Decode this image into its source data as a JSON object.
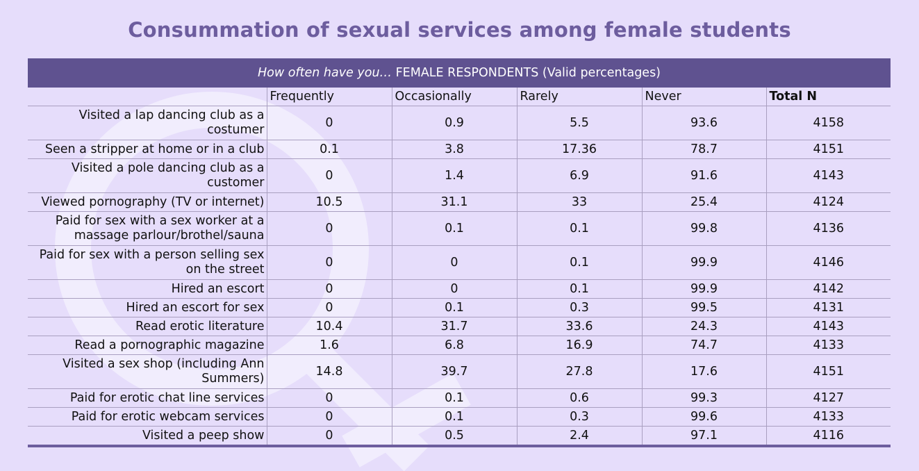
{
  "title": "Consummation of sexual services among female students",
  "table": {
    "banner_italic": "How often have you…",
    "banner_rest": " FEMALE RESPONDENTS (Valid percentages)",
    "columns": [
      "Frequently",
      "Occasionally",
      "Rarely",
      "Never",
      "Total N"
    ],
    "rows": [
      {
        "label": "Visited a lap dancing club as a costumer",
        "values": [
          "0",
          "0.9",
          "5.5",
          "93.6",
          "4158"
        ]
      },
      {
        "label": "Seen a stripper at home or in a club",
        "values": [
          "0.1",
          "3.8",
          "17.36",
          "78.7",
          "4151"
        ]
      },
      {
        "label": "Visited a pole dancing club as a customer",
        "values": [
          "0",
          "1.4",
          "6.9",
          "91.6",
          "4143"
        ]
      },
      {
        "label": "Viewed pornography (TV or internet)",
        "values": [
          "10.5",
          "31.1",
          "33",
          "25.4",
          "4124"
        ]
      },
      {
        "label": "Paid for sex with a sex worker at a massage parlour/brothel/sauna",
        "values": [
          "0",
          "0.1",
          "0.1",
          "99.8",
          "4136"
        ]
      },
      {
        "label": "Paid for sex with a person selling sex on the street",
        "values": [
          "0",
          "0",
          "0.1",
          "99.9",
          "4146"
        ]
      },
      {
        "label": "Hired an escort",
        "values": [
          "0",
          "0",
          "0.1",
          "99.9",
          "4142"
        ]
      },
      {
        "label": "Hired an escort for sex",
        "values": [
          "0",
          "0.1",
          "0.3",
          "99.5",
          "4131"
        ]
      },
      {
        "label": "Read erotic literature",
        "values": [
          "10.4",
          "31.7",
          "33.6",
          "24.3",
          "4143"
        ]
      },
      {
        "label": "Read a pornographic magazine",
        "values": [
          "1.6",
          "6.8",
          "16.9",
          "74.7",
          "4133"
        ]
      },
      {
        "label": "Visited a sex shop (including Ann Summers)",
        "values": [
          "14.8",
          "39.7",
          "27.8",
          "17.6",
          "4151"
        ]
      },
      {
        "label": "Paid for erotic chat line services",
        "values": [
          "0",
          "0.1",
          "0.6",
          "99.3",
          "4127"
        ]
      },
      {
        "label": "Paid for erotic webcam services",
        "values": [
          "0",
          "0.1",
          "0.3",
          "99.6",
          "4133"
        ]
      },
      {
        "label": "Visited a peep show",
        "values": [
          "0",
          "0.5",
          "2.4",
          "97.1",
          "4116"
        ]
      }
    ]
  },
  "colors": {
    "background": "#e6ddfb",
    "title": "#6d5d9e",
    "banner": "#5f5290",
    "watermark": "#f1edfd"
  },
  "decoration": {
    "watermark_icon": "female-symbol-icon"
  }
}
